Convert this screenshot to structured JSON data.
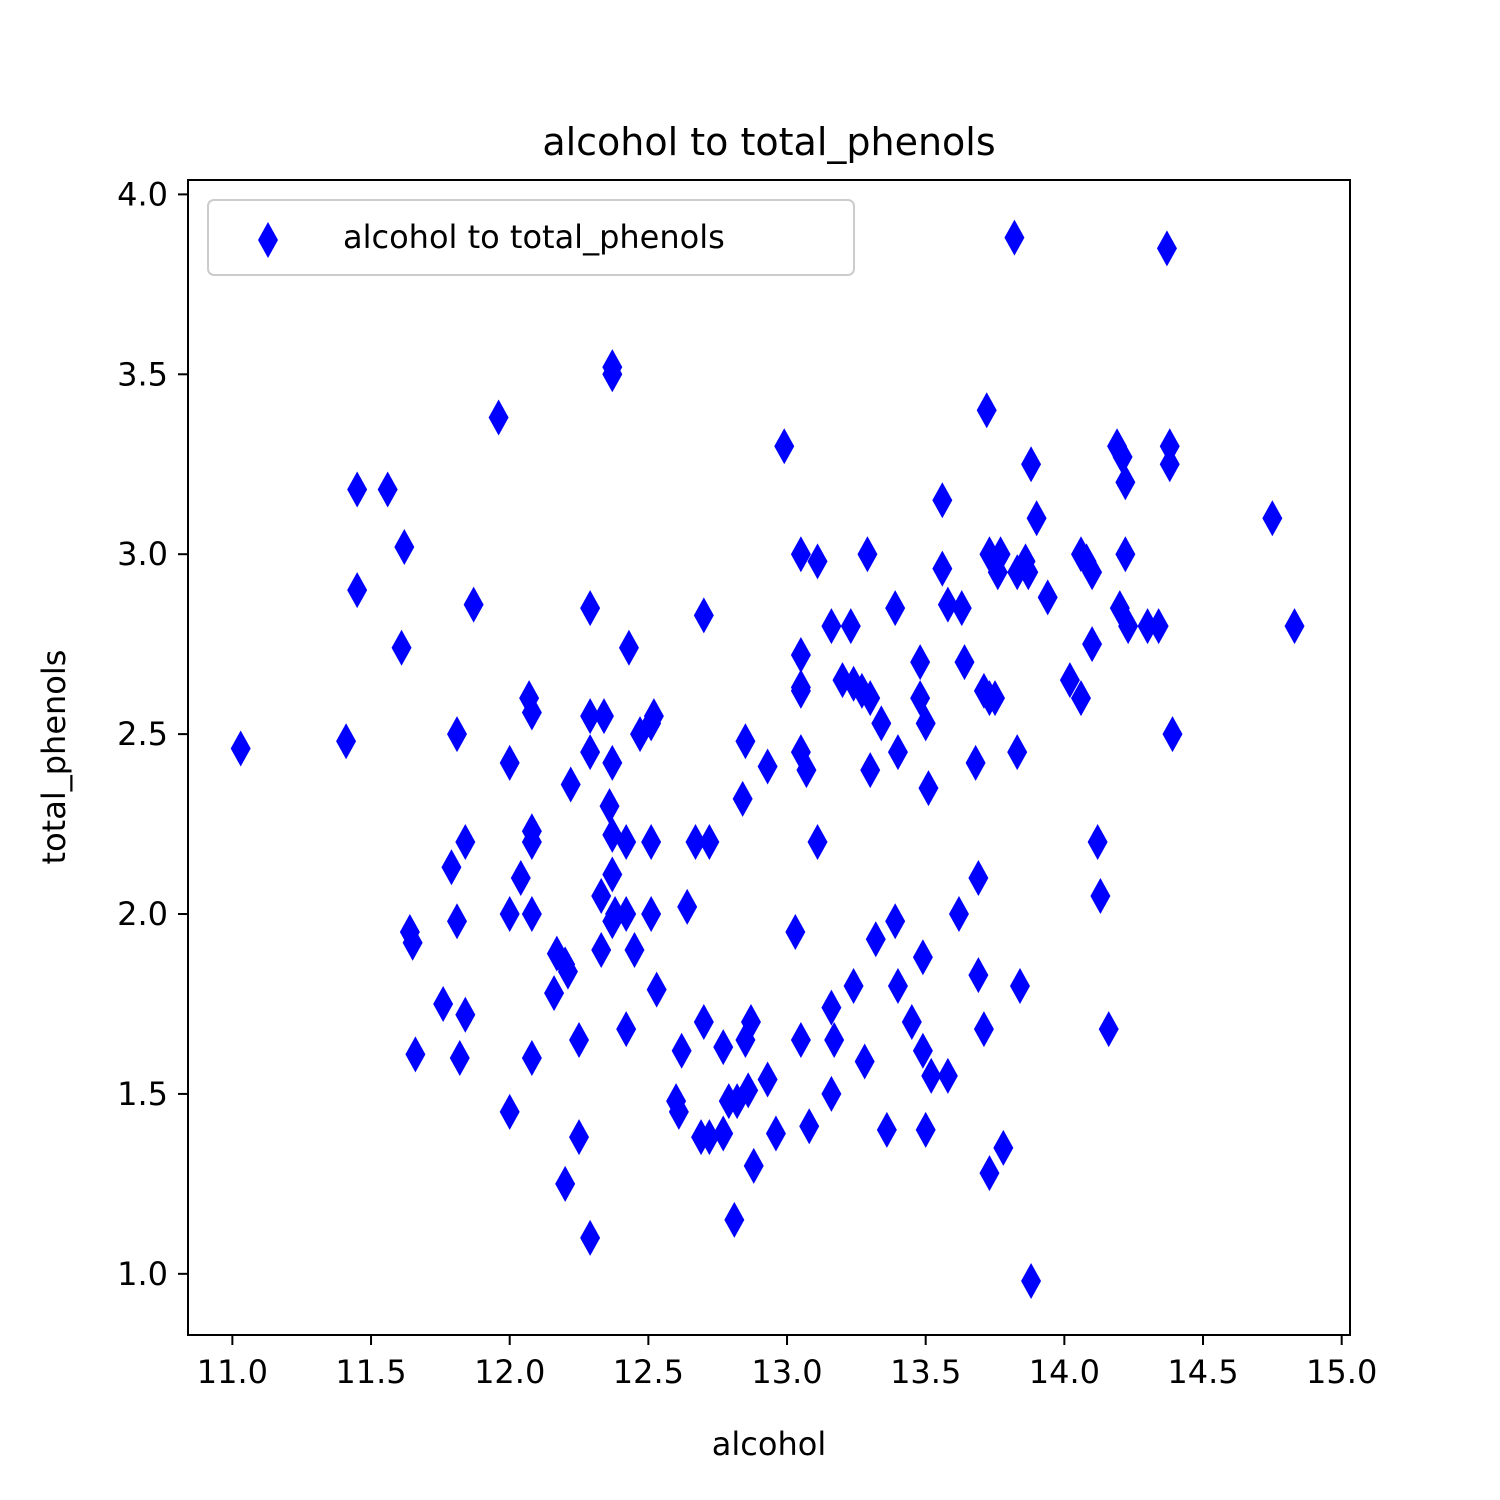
{
  "chart_data": {
    "type": "scatter",
    "title": "alcohol to total_phenols",
    "xlabel": "alcohol",
    "ylabel": "total_phenols",
    "xlim": [
      10.84,
      15.03
    ],
    "ylim": [
      0.83,
      4.04
    ],
    "xticks": [
      11.0,
      11.5,
      12.0,
      12.5,
      13.0,
      13.5,
      14.0,
      14.5,
      15.0
    ],
    "xtick_labels": [
      "11.0",
      "11.5",
      "12.0",
      "12.5",
      "13.0",
      "13.5",
      "14.0",
      "14.5",
      "15.0"
    ],
    "yticks": [
      1.0,
      1.5,
      2.0,
      2.5,
      3.0,
      3.5,
      4.0
    ],
    "ytick_labels": [
      "1.0",
      "1.5",
      "2.0",
      "2.5",
      "3.0",
      "3.5",
      "4.0"
    ],
    "grid": false,
    "legend_position": "top-left",
    "marker": "thin_diamond",
    "color": "#0000ff",
    "series": [
      {
        "name": "alcohol to total_phenols",
        "points": [
          [
            11.03,
            2.46
          ],
          [
            11.41,
            2.48
          ],
          [
            11.45,
            3.18
          ],
          [
            11.45,
            2.9
          ],
          [
            11.56,
            3.18
          ],
          [
            11.62,
            3.02
          ],
          [
            11.61,
            2.74
          ],
          [
            11.64,
            1.95
          ],
          [
            11.65,
            1.92
          ],
          [
            11.66,
            1.61
          ],
          [
            11.76,
            1.75
          ],
          [
            11.79,
            2.13
          ],
          [
            11.81,
            2.5
          ],
          [
            11.81,
            1.98
          ],
          [
            11.82,
            1.6
          ],
          [
            11.84,
            2.2
          ],
          [
            11.84,
            1.72
          ],
          [
            11.87,
            2.86
          ],
          [
            11.96,
            3.38
          ],
          [
            12.0,
            2.42
          ],
          [
            12.0,
            2.0
          ],
          [
            12.0,
            1.45
          ],
          [
            12.04,
            2.1
          ],
          [
            12.07,
            2.6
          ],
          [
            12.08,
            2.56
          ],
          [
            12.08,
            2.23
          ],
          [
            12.08,
            2.2
          ],
          [
            12.08,
            2.0
          ],
          [
            12.08,
            1.6
          ],
          [
            12.16,
            1.78
          ],
          [
            12.17,
            1.89
          ],
          [
            12.2,
            1.86
          ],
          [
            12.21,
            1.84
          ],
          [
            12.22,
            2.36
          ],
          [
            12.2,
            1.25
          ],
          [
            12.25,
            1.65
          ],
          [
            12.25,
            1.38
          ],
          [
            12.29,
            2.55
          ],
          [
            12.29,
            2.45
          ],
          [
            12.29,
            2.85
          ],
          [
            12.29,
            1.1
          ],
          [
            12.33,
            2.05
          ],
          [
            12.33,
            1.9
          ],
          [
            12.34,
            2.55
          ],
          [
            12.36,
            2.3
          ],
          [
            12.37,
            2.42
          ],
          [
            12.37,
            2.22
          ],
          [
            12.37,
            2.11
          ],
          [
            12.37,
            3.52
          ],
          [
            12.37,
            3.5
          ],
          [
            12.37,
            1.98
          ],
          [
            12.38,
            2.0
          ],
          [
            12.42,
            2.2
          ],
          [
            12.42,
            2.0
          ],
          [
            12.42,
            1.68
          ],
          [
            12.43,
            2.74
          ],
          [
            12.45,
            1.9
          ],
          [
            12.47,
            2.5
          ],
          [
            12.51,
            2.53
          ],
          [
            12.52,
            2.55
          ],
          [
            12.51,
            2.2
          ],
          [
            12.51,
            2.0
          ],
          [
            12.53,
            1.79
          ],
          [
            12.6,
            1.48
          ],
          [
            12.61,
            1.45
          ],
          [
            12.62,
            1.62
          ],
          [
            12.64,
            2.02
          ],
          [
            12.67,
            2.2
          ],
          [
            12.69,
            1.38
          ],
          [
            12.7,
            2.83
          ],
          [
            12.7,
            1.7
          ],
          [
            12.72,
            2.2
          ],
          [
            12.72,
            1.38
          ],
          [
            12.77,
            1.63
          ],
          [
            12.77,
            1.39
          ],
          [
            12.79,
            1.48
          ],
          [
            12.81,
            1.15
          ],
          [
            12.82,
            1.48
          ],
          [
            12.84,
            2.32
          ],
          [
            12.85,
            2.48
          ],
          [
            12.85,
            1.65
          ],
          [
            12.86,
            1.51
          ],
          [
            12.87,
            1.7
          ],
          [
            12.88,
            1.3
          ],
          [
            12.93,
            2.41
          ],
          [
            12.93,
            1.54
          ],
          [
            12.96,
            1.39
          ],
          [
            12.99,
            3.3
          ],
          [
            13.03,
            1.95
          ],
          [
            13.05,
            2.72
          ],
          [
            13.05,
            2.63
          ],
          [
            13.05,
            2.62
          ],
          [
            13.05,
            2.45
          ],
          [
            13.05,
            1.65
          ],
          [
            13.05,
            3.0
          ],
          [
            13.07,
            2.4
          ],
          [
            13.08,
            1.41
          ],
          [
            13.11,
            2.98
          ],
          [
            13.11,
            2.2
          ],
          [
            13.16,
            2.8
          ],
          [
            13.16,
            1.74
          ],
          [
            13.17,
            1.65
          ],
          [
            13.16,
            1.5
          ],
          [
            13.2,
            2.65
          ],
          [
            13.23,
            2.8
          ],
          [
            13.24,
            2.64
          ],
          [
            13.24,
            1.8
          ],
          [
            13.27,
            2.62
          ],
          [
            13.28,
            1.59
          ],
          [
            13.29,
            3.0
          ],
          [
            13.3,
            2.6
          ],
          [
            13.3,
            2.4
          ],
          [
            13.32,
            1.93
          ],
          [
            13.34,
            2.53
          ],
          [
            13.36,
            1.4
          ],
          [
            13.39,
            2.85
          ],
          [
            13.4,
            2.45
          ],
          [
            13.39,
            1.98
          ],
          [
            13.4,
            1.8
          ],
          [
            13.45,
            1.7
          ],
          [
            13.48,
            2.7
          ],
          [
            13.48,
            2.6
          ],
          [
            13.49,
            1.88
          ],
          [
            13.49,
            1.62
          ],
          [
            13.5,
            2.53
          ],
          [
            13.51,
            2.35
          ],
          [
            13.5,
            1.4
          ],
          [
            13.52,
            1.55
          ],
          [
            13.56,
            3.15
          ],
          [
            13.56,
            2.96
          ],
          [
            13.58,
            2.86
          ],
          [
            13.58,
            1.55
          ],
          [
            13.62,
            2.0
          ],
          [
            13.63,
            2.85
          ],
          [
            13.64,
            2.7
          ],
          [
            13.68,
            2.42
          ],
          [
            13.69,
            2.1
          ],
          [
            13.69,
            1.83
          ],
          [
            13.71,
            2.62
          ],
          [
            13.71,
            1.68
          ],
          [
            13.72,
            3.4
          ],
          [
            13.73,
            3.0
          ],
          [
            13.73,
            2.6
          ],
          [
            13.73,
            1.28
          ],
          [
            13.75,
            2.6
          ],
          [
            13.76,
            2.95
          ],
          [
            13.77,
            3.0
          ],
          [
            13.78,
            1.35
          ],
          [
            13.82,
            3.88
          ],
          [
            13.83,
            2.95
          ],
          [
            13.83,
            2.45
          ],
          [
            13.84,
            1.8
          ],
          [
            13.86,
            2.98
          ],
          [
            13.87,
            2.95
          ],
          [
            13.88,
            3.25
          ],
          [
            13.88,
            0.98
          ],
          [
            13.9,
            3.1
          ],
          [
            13.94,
            2.88
          ],
          [
            14.02,
            2.65
          ],
          [
            14.06,
            3.0
          ],
          [
            14.06,
            2.6
          ],
          [
            14.08,
            2.98
          ],
          [
            14.1,
            2.95
          ],
          [
            14.1,
            2.75
          ],
          [
            14.12,
            2.2
          ],
          [
            14.13,
            2.05
          ],
          [
            14.16,
            1.68
          ],
          [
            14.19,
            3.3
          ],
          [
            14.21,
            3.27
          ],
          [
            14.2,
            2.85
          ],
          [
            14.22,
            3.2
          ],
          [
            14.22,
            3.0
          ],
          [
            14.23,
            2.8
          ],
          [
            14.3,
            2.8
          ],
          [
            14.34,
            2.8
          ],
          [
            14.37,
            3.85
          ],
          [
            14.38,
            3.3
          ],
          [
            14.38,
            3.25
          ],
          [
            14.39,
            2.5
          ],
          [
            14.75,
            3.1
          ],
          [
            14.83,
            2.8
          ]
        ]
      }
    ]
  }
}
